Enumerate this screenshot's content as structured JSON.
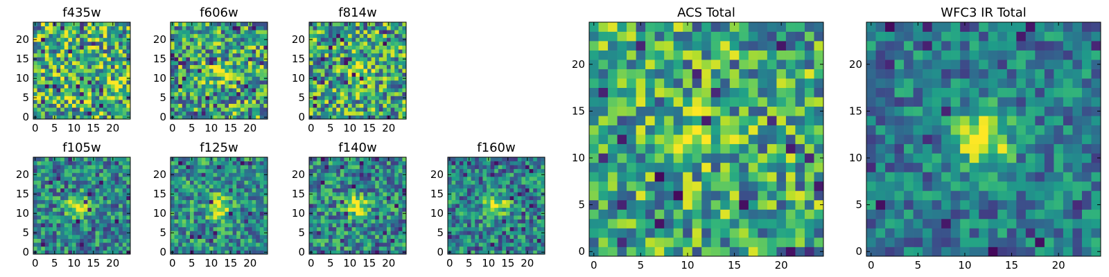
{
  "colormap": {
    "name": "viridis",
    "stops": [
      "#440154",
      "#482878",
      "#3e4989",
      "#31688e",
      "#26828e",
      "#1f9e89",
      "#35b779",
      "#6ece58",
      "#b5de2b",
      "#fde725"
    ]
  },
  "chart_data": [
    {
      "type": "heatmap",
      "id": "f435w",
      "title": "f435w",
      "xlabel": "",
      "ylabel": "",
      "grid_size": 25,
      "xlim": [
        0,
        24
      ],
      "ylim": [
        0,
        24
      ],
      "xticks": [
        "0",
        "5",
        "10",
        "15",
        "20"
      ],
      "yticks": [
        "0",
        "5",
        "10",
        "15",
        "20"
      ],
      "source": null,
      "noise": 0.42,
      "base": 0.62,
      "seed": 11,
      "grid": false
    },
    {
      "type": "heatmap",
      "id": "f606w",
      "title": "f606w",
      "xlabel": "",
      "ylabel": "",
      "grid_size": 25,
      "xlim": [
        0,
        24
      ],
      "ylim": [
        0,
        24
      ],
      "xticks": [
        "0",
        "5",
        "10",
        "15",
        "20"
      ],
      "yticks": [
        "0",
        "5",
        "10",
        "15",
        "20"
      ],
      "source": {
        "x": 12,
        "y": 12,
        "sigma": 1.6,
        "amplitude": 0.45
      },
      "noise": 0.4,
      "base": 0.58,
      "seed": 23,
      "grid": false
    },
    {
      "type": "heatmap",
      "id": "f814w",
      "title": "f814w",
      "xlabel": "",
      "ylabel": "",
      "grid_size": 25,
      "xlim": [
        0,
        24
      ],
      "ylim": [
        0,
        24
      ],
      "xticks": [
        "0",
        "5",
        "10",
        "15",
        "20"
      ],
      "yticks": [
        "0",
        "5",
        "10",
        "15",
        "20"
      ],
      "source": {
        "x": 12,
        "y": 12,
        "sigma": 1.6,
        "amplitude": 0.45
      },
      "noise": 0.4,
      "base": 0.58,
      "seed": 37,
      "grid": false
    },
    {
      "type": "heatmap",
      "id": "f105w",
      "title": "f105w",
      "xlabel": "",
      "ylabel": "",
      "grid_size": 25,
      "xlim": [
        0,
        24
      ],
      "ylim": [
        0,
        24
      ],
      "xticks": [
        "0",
        "5",
        "10",
        "15",
        "20"
      ],
      "yticks": [
        "0",
        "5",
        "10",
        "15",
        "20"
      ],
      "source": {
        "x": 11,
        "y": 12,
        "sigma": 1.9,
        "amplitude": 0.55
      },
      "noise": 0.3,
      "base": 0.46,
      "seed": 41,
      "grid": false
    },
    {
      "type": "heatmap",
      "id": "f125w",
      "title": "f125w",
      "xlabel": "",
      "ylabel": "",
      "grid_size": 25,
      "xlim": [
        0,
        24
      ],
      "ylim": [
        0,
        24
      ],
      "xticks": [
        "0",
        "5",
        "10",
        "15",
        "20"
      ],
      "yticks": [
        "0",
        "5",
        "10",
        "15",
        "20"
      ],
      "source": {
        "x": 12,
        "y": 11.5,
        "sigma": 1.9,
        "amplitude": 0.55
      },
      "noise": 0.3,
      "base": 0.5,
      "seed": 53,
      "grid": false
    },
    {
      "type": "heatmap",
      "id": "f140w",
      "title": "f140w",
      "xlabel": "",
      "ylabel": "",
      "grid_size": 25,
      "xlim": [
        0,
        24
      ],
      "ylim": [
        0,
        24
      ],
      "xticks": [
        "0",
        "5",
        "10",
        "15",
        "20"
      ],
      "yticks": [
        "0",
        "5",
        "10",
        "15",
        "20"
      ],
      "source": {
        "x": 11.5,
        "y": 12,
        "sigma": 1.9,
        "amplitude": 0.55
      },
      "noise": 0.3,
      "base": 0.48,
      "seed": 67,
      "grid": false
    },
    {
      "type": "heatmap",
      "id": "f160w",
      "title": "f160w",
      "xlabel": "",
      "ylabel": "",
      "grid_size": 25,
      "xlim": [
        0,
        24
      ],
      "ylim": [
        0,
        24
      ],
      "xticks": [
        "0",
        "5",
        "10",
        "15",
        "20"
      ],
      "yticks": [
        "0",
        "5",
        "10",
        "15",
        "20"
      ],
      "source": {
        "x": 12,
        "y": 12,
        "sigma": 2.0,
        "amplitude": 0.5
      },
      "noise": 0.3,
      "base": 0.45,
      "seed": 71,
      "grid": false
    },
    {
      "type": "heatmap",
      "id": "acs-total",
      "title": "ACS Total",
      "xlabel": "",
      "ylabel": "",
      "grid_size": 25,
      "xlim": [
        0,
        24
      ],
      "ylim": [
        0,
        24
      ],
      "xticks": [
        "0",
        "5",
        "10",
        "15",
        "20"
      ],
      "yticks": [
        "0",
        "5",
        "10",
        "15",
        "20"
      ],
      "source": {
        "x": 11.5,
        "y": 12.5,
        "sigma": 1.5,
        "amplitude": 0.4
      },
      "noise": 0.36,
      "base": 0.6,
      "seed": 83,
      "grid": false
    },
    {
      "type": "heatmap",
      "id": "wfc3-ir-total",
      "title": "WFC3 IR Total",
      "xlabel": "",
      "ylabel": "",
      "grid_size": 25,
      "xlim": [
        0,
        24
      ],
      "ylim": [
        0,
        24
      ],
      "xticks": [
        "0",
        "5",
        "10",
        "15",
        "20"
      ],
      "yticks": [
        "0",
        "5",
        "10",
        "15",
        "20"
      ],
      "source": {
        "x": 12,
        "y": 12,
        "sigma": 2.1,
        "amplitude": 0.6
      },
      "noise": 0.24,
      "base": 0.42,
      "seed": 97,
      "grid": false
    }
  ]
}
